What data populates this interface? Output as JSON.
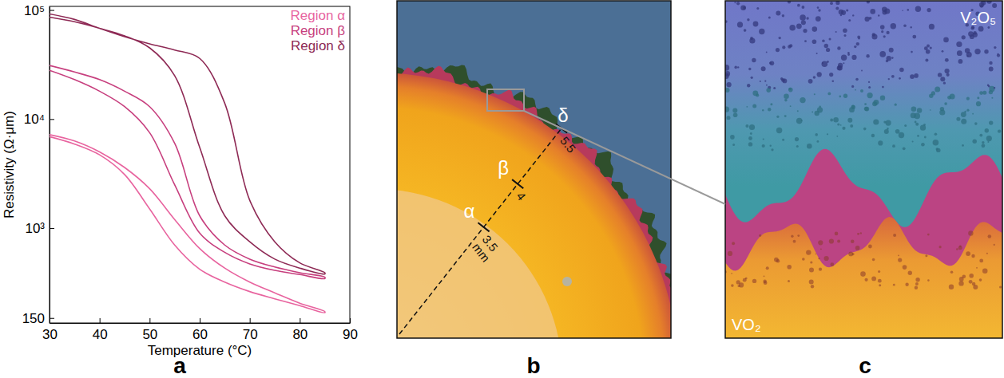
{
  "panel_labels": [
    "a",
    "b",
    "c"
  ],
  "chart_data": {
    "type": "line",
    "x_label": "Temperature (°C)",
    "y_label": "Resistivity (Ω·μm)",
    "xlim": [
      30,
      90
    ],
    "xticks": [
      30,
      40,
      50,
      60,
      70,
      80,
      90
    ],
    "ylim": [
      135,
      108000
    ],
    "yticks": [
      150,
      {
        "value": 1000,
        "label": "10³"
      },
      {
        "value": 10000,
        "label": "10⁴"
      },
      {
        "value": 100000,
        "label": "10⁵"
      }
    ],
    "log": "y",
    "legend": "upper right",
    "series": [
      {
        "name": "Region α",
        "color": "#e8649f",
        "x": [
          30,
          35,
          40,
          45,
          50,
          55,
          60,
          65,
          70,
          75,
          80,
          85,
          85,
          80,
          75,
          70,
          65,
          60,
          55,
          50,
          45,
          40,
          35,
          30
        ],
        "values": [
          7200,
          6300,
          5000,
          3600,
          2300,
          1200,
          650,
          430,
          320,
          255,
          205,
          172,
          168,
          195,
          225,
          262,
          320,
          420,
          700,
          1500,
          3100,
          4700,
          5900,
          6900
        ]
      },
      {
        "name": "Region β",
        "color": "#c73f7e",
        "x": [
          30,
          35,
          40,
          45,
          50,
          55,
          60,
          65,
          70,
          75,
          80,
          85,
          85,
          80,
          75,
          70,
          65,
          60,
          55,
          50,
          45,
          40,
          35,
          30
        ],
        "values": [
          31000,
          27000,
          23000,
          18000,
          13000,
          6000,
          1300,
          700,
          520,
          440,
          390,
          355,
          345,
          375,
          410,
          470,
          600,
          900,
          2500,
          7500,
          13000,
          18000,
          23000,
          28000
        ]
      },
      {
        "name": "Region δ",
        "color": "#8e2a55",
        "x": [
          30,
          35,
          40,
          45,
          50,
          55,
          60,
          65,
          70,
          75,
          80,
          85,
          85,
          80,
          75,
          70,
          65,
          60,
          55,
          50,
          45,
          40,
          35,
          30
        ],
        "values": [
          92000,
          82000,
          68000,
          57000,
          49000,
          43000,
          36000,
          14000,
          1800,
          750,
          480,
          390,
          380,
          430,
          520,
          750,
          1300,
          5500,
          25000,
          45000,
          58000,
          68000,
          78000,
          86000
        ]
      }
    ]
  },
  "micrograph_b": {
    "unit": "mm",
    "markers": [
      {
        "label": "α",
        "distance": 3.5
      },
      {
        "label": "β",
        "distance": 4
      },
      {
        "label": "δ",
        "distance": 5.5
      }
    ]
  },
  "micrograph_c": {
    "phases": [
      "V₂O₅",
      "VO₂"
    ]
  }
}
